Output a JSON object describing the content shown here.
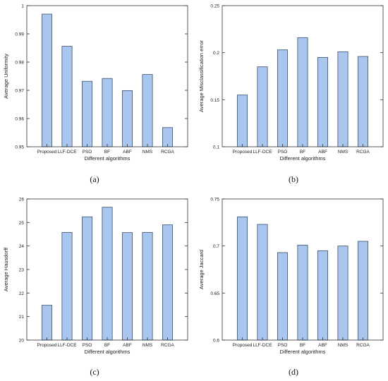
{
  "chart_data": [
    {
      "type": "bar",
      "panel_label": "(a)",
      "categories": [
        "Proposed",
        "LLF-DCE",
        "PSO",
        "BF",
        "ABF",
        "NMS",
        "RCGA"
      ],
      "values": [
        0.997,
        0.9856,
        0.9732,
        0.9742,
        0.9699,
        0.9756,
        0.9568
      ],
      "xlabel": "Different algorithms",
      "ylabel": "Average Uniformity",
      "ylim": [
        0.95,
        1
      ],
      "yticks": [
        0.95,
        0.96,
        0.97,
        0.98,
        0.99,
        1
      ],
      "ytick_labels": [
        "0.95",
        "0.96",
        "0.97",
        "0.98",
        "0.99",
        "1"
      ],
      "bar_color": "#a8c6ee",
      "grid": false
    },
    {
      "type": "bar",
      "panel_label": "(b)",
      "categories": [
        "Proposed",
        "LLF-DCE",
        "PSO",
        "BF",
        "ABF",
        "NMS",
        "RCGA"
      ],
      "values": [
        0.155,
        0.185,
        0.203,
        0.216,
        0.195,
        0.201,
        0.196
      ],
      "xlabel": "Different algorithms",
      "ylabel": "Average Misclassification error",
      "ylim": [
        0.1,
        0.25
      ],
      "yticks": [
        0.1,
        0.15,
        0.2,
        0.25
      ],
      "ytick_labels": [
        "0.1",
        "0.15",
        "0.2",
        "0.25"
      ],
      "bar_color": "#a8c6ee",
      "grid": false
    },
    {
      "type": "bar",
      "panel_label": "(c)",
      "categories": [
        "Proposed",
        "LLF-DCE",
        "PSO",
        "BF",
        "ABF",
        "NMS",
        "RCGA"
      ],
      "values": [
        21.48,
        24.58,
        25.24,
        25.65,
        24.57,
        24.58,
        24.9
      ],
      "xlabel": "Different algorithms",
      "ylabel": "Average Hausdorff",
      "ylim": [
        20,
        26
      ],
      "yticks": [
        20,
        21,
        22,
        23,
        24,
        25,
        26
      ],
      "ytick_labels": [
        "20",
        "21",
        "22",
        "23",
        "24",
        "25",
        "26"
      ],
      "bar_color": "#a8c6ee",
      "grid": false
    },
    {
      "type": "bar",
      "panel_label": "(d)",
      "categories": [
        "Proposed",
        "LLF-DCE",
        "PSO",
        "BF",
        "ABF",
        "NMS",
        "RCGA"
      ],
      "values": [
        0.731,
        0.723,
        0.693,
        0.701,
        0.695,
        0.7,
        0.705
      ],
      "xlabel": "Different algorithms",
      "ylabel": "Average Jaccard",
      "ylim": [
        0.6,
        0.75
      ],
      "yticks": [
        0.6,
        0.65,
        0.7,
        0.75
      ],
      "ytick_labels": [
        "0.6",
        "0.65",
        "0.7",
        "0.75"
      ],
      "bar_color": "#a8c6ee",
      "grid": false
    }
  ]
}
